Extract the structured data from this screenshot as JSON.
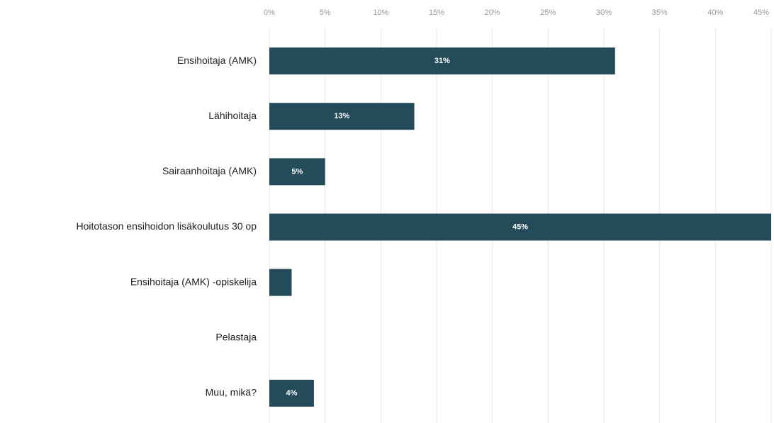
{
  "chart_data": {
    "type": "hbar",
    "categories": [
      "Ensihoitaja (AMK)",
      "Lähihoitaja",
      "Sairaanhoitaja (AMK)",
      "Hoitotason ensihoidon lisäkoulutus 30 op",
      "Ensihoitaja (AMK) -opiskelija",
      "Pelastaja",
      "Muu, mikä?"
    ],
    "values": [
      31,
      13,
      5,
      45,
      2,
      0,
      4
    ],
    "value_labels": [
      "31%",
      "13%",
      "5%",
      "45%",
      null,
      null,
      "4%"
    ],
    "color": "#244b5a",
    "xlim": [
      0,
      45
    ],
    "xticks": [
      {
        "value": 0,
        "label": "0%"
      },
      {
        "value": 5,
        "label": "5%"
      },
      {
        "value": 10,
        "label": "10%"
      },
      {
        "value": 15,
        "label": "15%"
      },
      {
        "value": 20,
        "label": "20%"
      },
      {
        "value": 25,
        "label": "25%"
      },
      {
        "value": 30,
        "label": "30%"
      },
      {
        "value": 35,
        "label": "35%"
      },
      {
        "value": 40,
        "label": "40%"
      },
      {
        "value": 45,
        "label": "45%"
      }
    ],
    "grid": true
  }
}
